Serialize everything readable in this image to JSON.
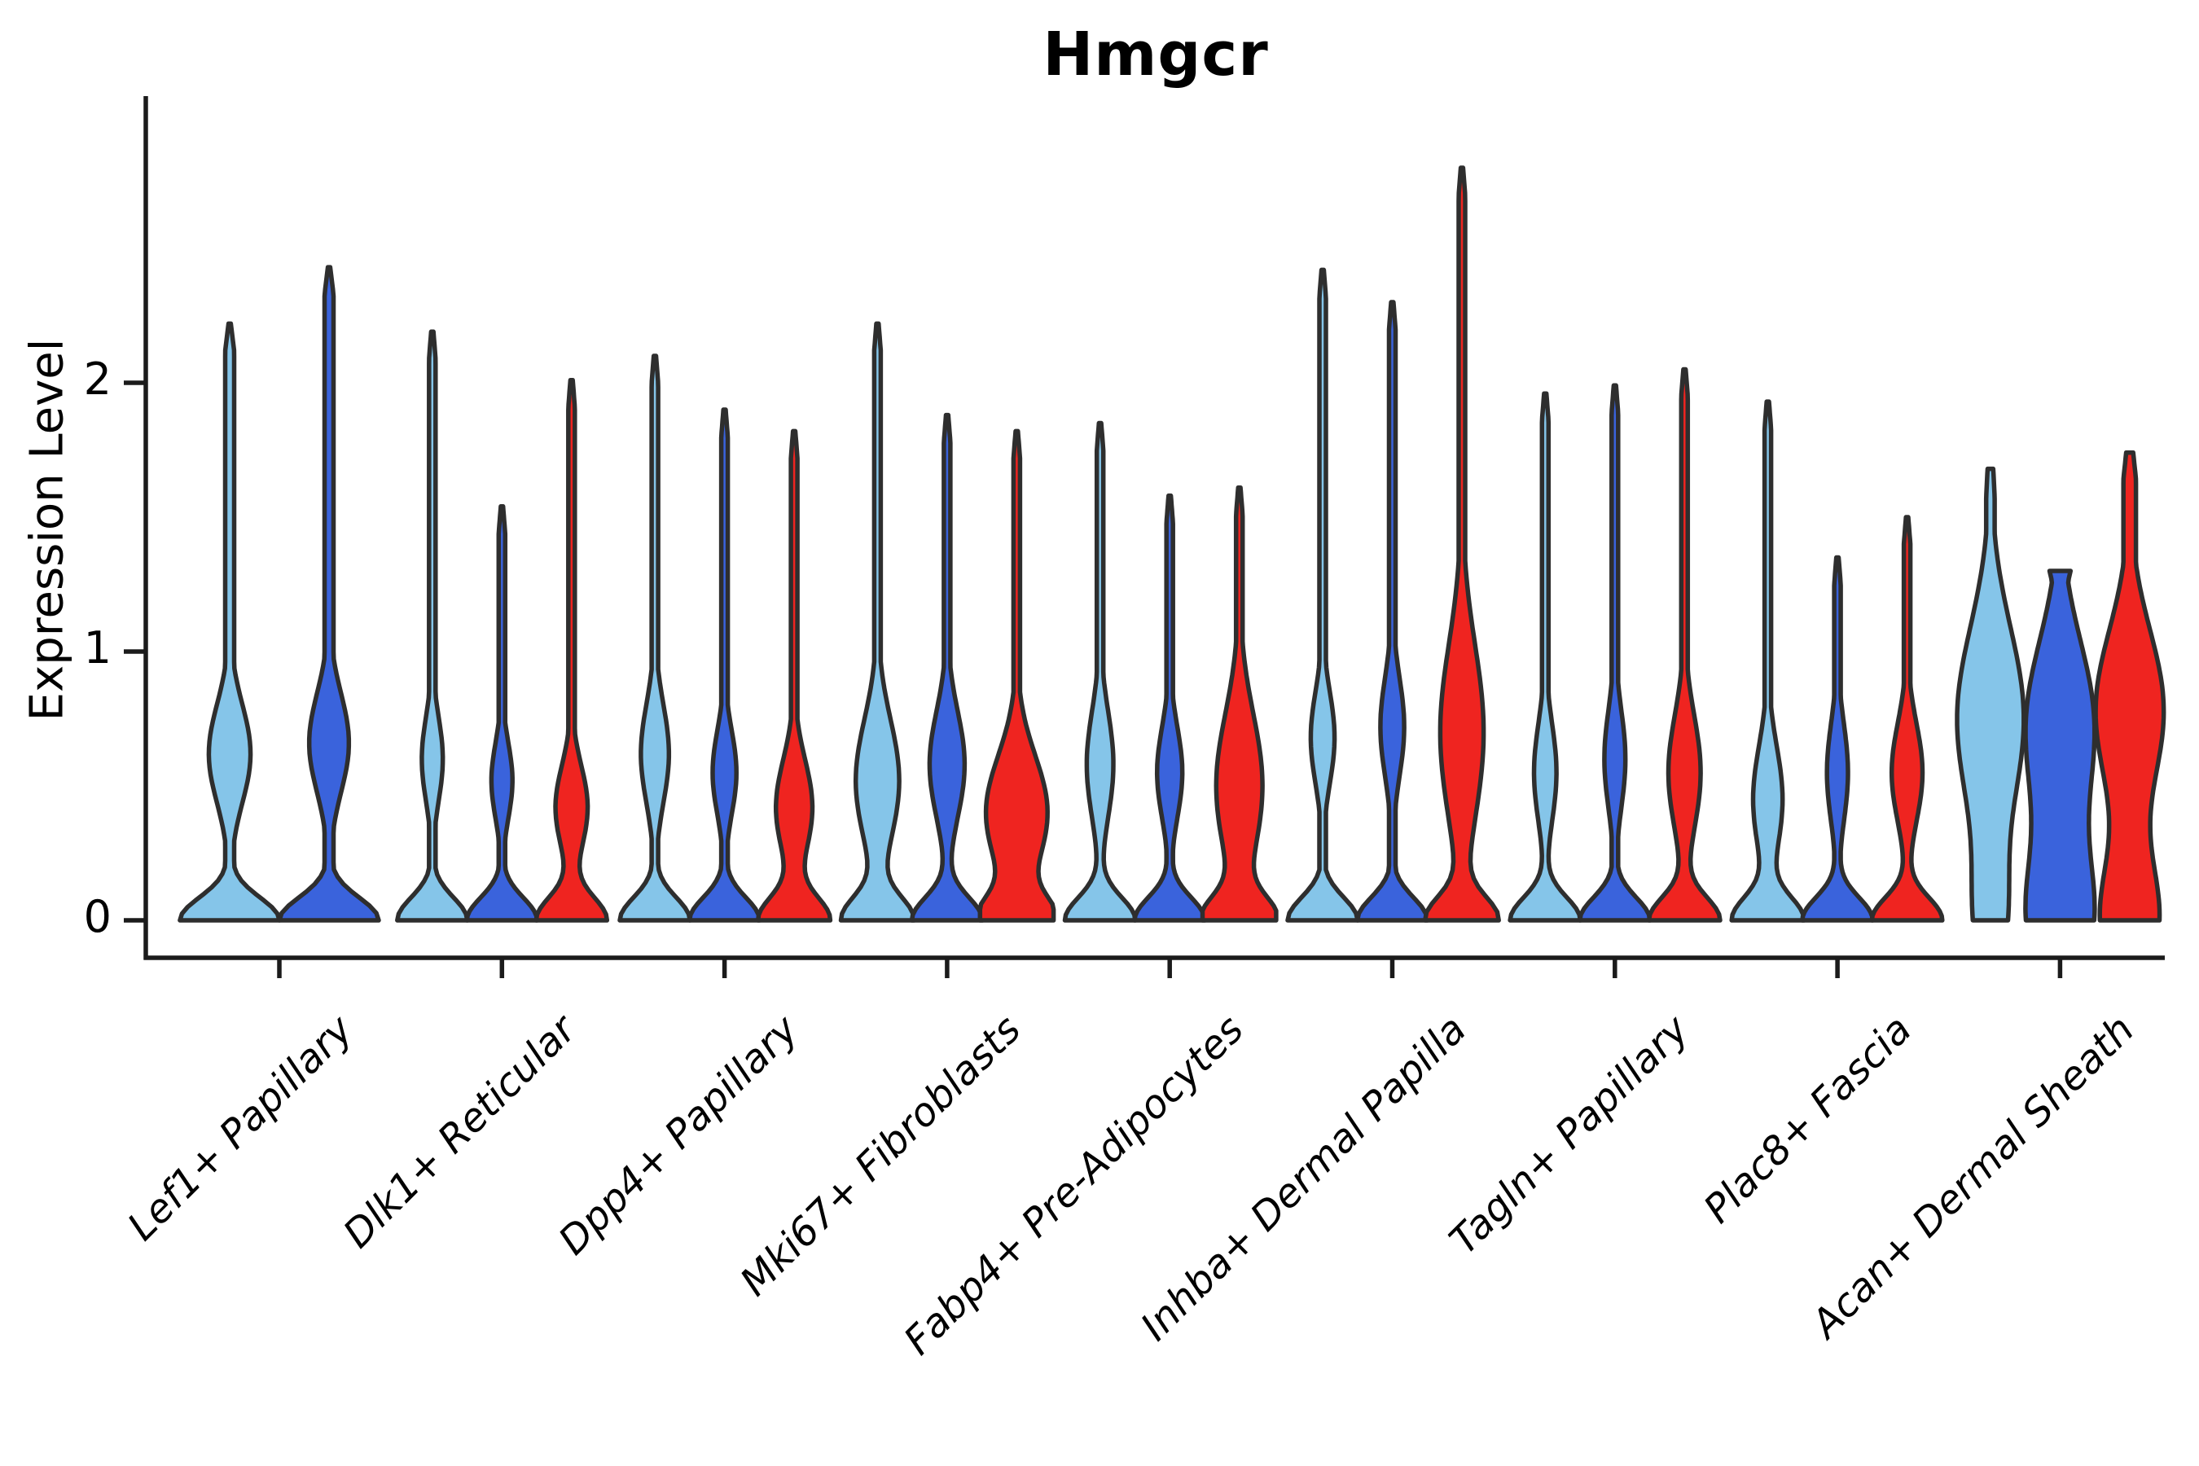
{
  "chart_data": {
    "type": "violin",
    "title": "Hmgcr",
    "ylabel": "Expression Level",
    "xlabel": "",
    "yticks": [
      0,
      1,
      2
    ],
    "ylim": [
      -0.14,
      3.05
    ],
    "grid": false,
    "legend": "none",
    "series_colors": [
      "#85C5E9",
      "#3A63DC",
      "#EF2420"
    ],
    "outline_color": "#2E2E2E",
    "axis_color": "#1B1B1B",
    "categories": [
      "Lef1+ Papillary",
      "Dlk1+ Reticular",
      "Dpp4+ Papillary",
      "Mki67+ Fibroblasts",
      "Fabp4+ Pre-Adipocytes",
      "Inhba+ Dermal Papilla",
      "Tagln+ Papillary",
      "Plac8+ Fascia",
      "Acan+ Dermal Sheath"
    ],
    "groups": [
      {
        "category": "Lef1+ Papillary",
        "violins": [
          {
            "series": 0,
            "max": 2.22,
            "shape": {
              "base": 1.0,
              "base_sigma": 0.12,
              "bulges": [
                [
                  0.62,
                  0.42,
                  0.26
                ]
              ]
            }
          },
          {
            "series": 1,
            "max": 2.43,
            "shape": {
              "base": 1.0,
              "base_sigma": 0.12,
              "bulges": [
                [
                  0.66,
                  0.4,
                  0.26
                ]
              ]
            }
          }
        ]
      },
      {
        "category": "Dlk1+ Reticular",
        "violins": [
          {
            "series": 0,
            "max": 2.19,
            "shape": {
              "base": 1.0,
              "base_sigma": 0.12,
              "bulges": [
                [
                  0.6,
                  0.3,
                  0.22
                ]
              ]
            }
          },
          {
            "series": 1,
            "max": 1.54,
            "shape": {
              "base": 1.0,
              "base_sigma": 0.12,
              "bulges": [
                [
                  0.52,
                  0.3,
                  0.2
                ]
              ]
            }
          },
          {
            "series": 2,
            "max": 2.01,
            "shape": {
              "base": 1.0,
              "base_sigma": 0.12,
              "bulges": [
                [
                  0.42,
                  0.46,
                  0.22
                ]
              ]
            }
          }
        ]
      },
      {
        "category": "Dpp4+ Papillary",
        "violins": [
          {
            "series": 0,
            "max": 2.1,
            "shape": {
              "base": 1.0,
              "base_sigma": 0.12,
              "bulges": [
                [
                  0.62,
                  0.4,
                  0.26
                ]
              ]
            }
          },
          {
            "series": 1,
            "max": 1.9,
            "shape": {
              "base": 1.0,
              "base_sigma": 0.12,
              "bulges": [
                [
                  0.55,
                  0.34,
                  0.22
                ]
              ]
            }
          },
          {
            "series": 2,
            "max": 1.82,
            "shape": {
              "base": 1.0,
              "base_sigma": 0.12,
              "bulges": [
                [
                  0.42,
                  0.52,
                  0.25
                ]
              ]
            }
          }
        ]
      },
      {
        "category": "Mki67+ Fibroblasts",
        "violins": [
          {
            "series": 0,
            "max": 2.22,
            "shape": {
              "base": 1.0,
              "base_sigma": 0.12,
              "bulges": [
                [
                  0.52,
                  0.62,
                  0.32
                ]
              ]
            }
          },
          {
            "series": 1,
            "max": 1.88,
            "shape": {
              "base": 1.0,
              "base_sigma": 0.12,
              "bulges": [
                [
                  0.58,
                  0.5,
                  0.28
                ]
              ]
            }
          },
          {
            "series": 2,
            "max": 1.82,
            "shape": {
              "base": 1.0,
              "base_sigma": 0.12,
              "bulges": [
                [
                  0.4,
                  0.88,
                  0.3
                ]
              ]
            }
          }
        ]
      },
      {
        "category": "Fabp4+ Pre-Adipocytes",
        "violins": [
          {
            "series": 0,
            "max": 1.85,
            "shape": {
              "base": 1.0,
              "base_sigma": 0.12,
              "bulges": [
                [
                  0.58,
                  0.38,
                  0.28
                ]
              ]
            }
          },
          {
            "series": 1,
            "max": 1.58,
            "shape": {
              "base": 1.0,
              "base_sigma": 0.12,
              "bulges": [
                [
                  0.55,
                  0.36,
                  0.24
                ]
              ]
            }
          },
          {
            "series": 2,
            "max": 1.61,
            "shape": {
              "base": 1.0,
              "base_sigma": 0.12,
              "bulges": [
                [
                  0.5,
                  0.66,
                  0.38
                ]
              ]
            }
          }
        ]
      },
      {
        "category": "Inhba+ Dermal Papilla",
        "violins": [
          {
            "series": 0,
            "max": 2.42,
            "shape": {
              "base": 1.0,
              "base_sigma": 0.12,
              "bulges": [
                [
                  0.68,
                  0.34,
                  0.24
                ]
              ]
            }
          },
          {
            "series": 1,
            "max": 2.3,
            "shape": {
              "base": 1.0,
              "base_sigma": 0.12,
              "bulges": [
                [
                  0.72,
                  0.34,
                  0.26
                ]
              ]
            }
          },
          {
            "series": 2,
            "max": 2.8,
            "shape": {
              "base": 1.0,
              "base_sigma": 0.12,
              "bulges": [
                [
                  0.7,
                  0.62,
                  0.46
                ]
              ]
            }
          }
        ]
      },
      {
        "category": "Tagln+ Papillary",
        "violins": [
          {
            "series": 0,
            "max": 1.96,
            "shape": {
              "base": 1.0,
              "base_sigma": 0.12,
              "bulges": [
                [
                  0.55,
                  0.32,
                  0.26
                ]
              ]
            }
          },
          {
            "series": 1,
            "max": 1.99,
            "shape": {
              "base": 1.0,
              "base_sigma": 0.12,
              "bulges": [
                [
                  0.6,
                  0.3,
                  0.26
                ]
              ]
            }
          },
          {
            "series": 2,
            "max": 2.05,
            "shape": {
              "base": 1.0,
              "base_sigma": 0.12,
              "bulges": [
                [
                  0.55,
                  0.46,
                  0.3
                ]
              ]
            }
          }
        ]
      },
      {
        "category": "Plac8+ Fascia",
        "violins": [
          {
            "series": 0,
            "max": 1.93,
            "shape": {
              "base": 1.0,
              "base_sigma": 0.12,
              "bulges": [
                [
                  0.45,
                  0.42,
                  0.28
                ]
              ]
            }
          },
          {
            "series": 1,
            "max": 1.35,
            "shape": {
              "base": 1.0,
              "base_sigma": 0.12,
              "bulges": [
                [
                  0.55,
                  0.3,
                  0.26
                ]
              ]
            }
          },
          {
            "series": 2,
            "max": 1.5,
            "shape": {
              "base": 1.0,
              "base_sigma": 0.12,
              "bulges": [
                [
                  0.55,
                  0.44,
                  0.26
                ]
              ]
            }
          }
        ]
      },
      {
        "category": "Acan+ Dermal Sheath",
        "violins": [
          {
            "series": 0,
            "max": 1.68,
            "shape": {
              "base": 0,
              "base_sigma": 0.12,
              "bulges": [
                [
                  0.0,
                  0.42,
                  0.32
                ],
                [
                  0.75,
                  0.95,
                  0.48
                ]
              ],
              "floor": 0.12,
              "top": 0.08
            }
          },
          {
            "series": 1,
            "max": 1.3,
            "shape": {
              "base": 0,
              "base_sigma": 0.12,
              "bulges": [
                [
                  0.0,
                  0.9,
                  0.35
                ],
                [
                  0.72,
                  0.97,
                  0.45
                ]
              ],
              "floor": 0.12,
              "top": 0.3
            }
          },
          {
            "series": 2,
            "max": 1.74,
            "shape": {
              "base": 0,
              "base_sigma": 0.12,
              "bulges": [
                [
                  0.0,
                  0.82,
                  0.32
                ],
                [
                  0.78,
                  0.97,
                  0.42
                ]
              ],
              "floor": 0.18,
              "top": 0.1
            }
          }
        ]
      }
    ]
  }
}
